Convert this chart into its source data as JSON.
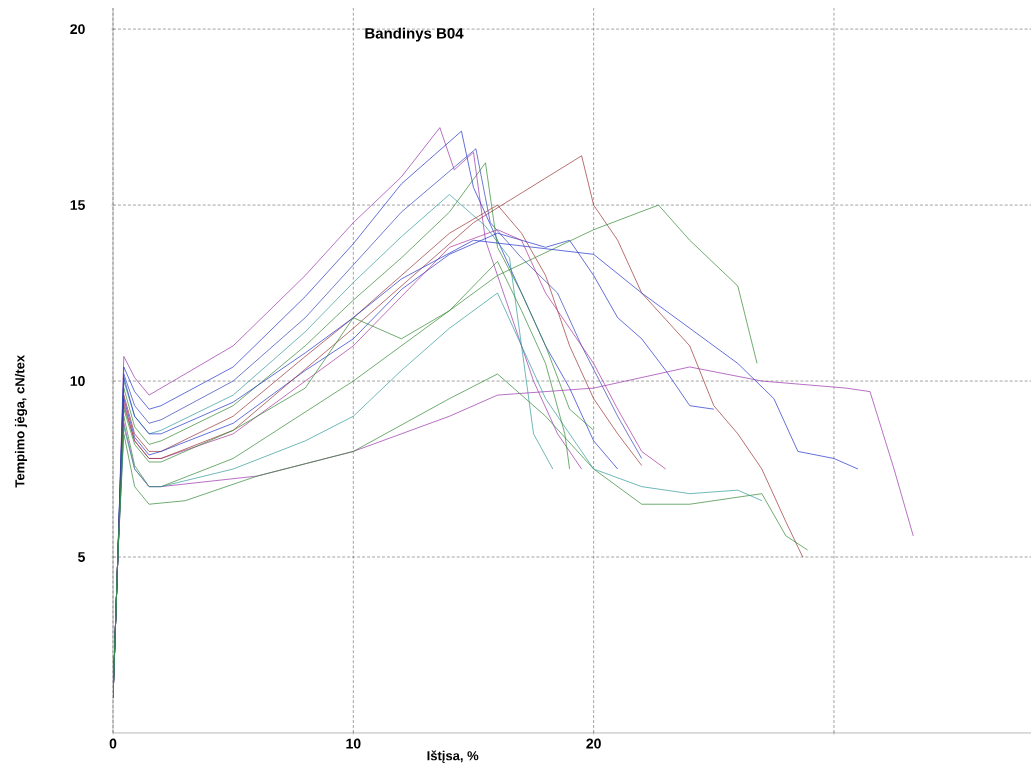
{
  "chart_data": {
    "type": "line",
    "title": "Bandinys B04",
    "xlabel": "Ištįsa, %",
    "ylabel": "Tempimo jėga, cN/tex",
    "xlim": [
      0,
      38.2
    ],
    "ylim": [
      0,
      20.6
    ],
    "xticks": [
      0,
      10,
      20,
      {
        "value": 30,
        "label": null
      }
    ],
    "yticks": [
      5,
      10,
      15,
      20
    ],
    "grid": true,
    "line_style": "solid",
    "marker": "none",
    "series": [
      {
        "color": "#9933aa",
        "x": [
          0,
          0.2,
          0.45,
          0.9,
          1.5,
          2,
          5,
          8,
          10,
          12,
          13.6,
          14.2,
          15,
          15.5,
          16.5,
          17.5,
          18.5,
          19.5
        ],
        "values": [
          1,
          5,
          10.7,
          10.1,
          9.6,
          9.8,
          11,
          13,
          14.5,
          15.8,
          17.2,
          16,
          16.5,
          14,
          12,
          10,
          8.5,
          7.5
        ]
      },
      {
        "color": "#2233cc",
        "x": [
          0,
          0.2,
          0.45,
          0.9,
          1.5,
          2,
          5,
          8,
          10,
          12,
          14.5,
          15,
          16,
          17,
          18,
          19,
          20,
          21
        ],
        "values": [
          1,
          5,
          10.4,
          9.7,
          9.2,
          9.3,
          10.4,
          12.4,
          13.9,
          15.6,
          17.1,
          15.5,
          14,
          12.5,
          11,
          9.8,
          8.3,
          7.5
        ]
      },
      {
        "color": "#3344bb",
        "x": [
          0,
          0.2,
          0.45,
          0.9,
          1.5,
          2,
          5,
          8,
          10,
          12,
          15.1,
          15.7,
          17,
          18.5,
          19.5,
          21,
          22
        ],
        "values": [
          1,
          5,
          10.2,
          9.3,
          8.8,
          8.9,
          10,
          11.8,
          13.3,
          14.8,
          16.6,
          14.5,
          13.5,
          12.5,
          11,
          9,
          7.8
        ]
      },
      {
        "color": "#339999",
        "x": [
          0,
          0.2,
          0.45,
          0.9,
          1.5,
          2,
          5,
          8,
          10,
          12,
          14,
          15.5,
          16.5,
          17,
          17.5,
          18.3
        ],
        "values": [
          1,
          5,
          10,
          9,
          8.5,
          8.6,
          9.6,
          11.4,
          12.8,
          14.1,
          15.3,
          14.4,
          13.5,
          11,
          8.5,
          7.5
        ]
      },
      {
        "color": "#338833",
        "x": [
          0,
          0.2,
          0.45,
          0.9,
          1.5,
          2,
          5,
          8,
          10,
          12,
          14,
          15.5,
          16,
          17,
          18,
          19,
          20
        ],
        "values": [
          1,
          5,
          9.8,
          8.7,
          8.2,
          8.3,
          9.3,
          11,
          12.3,
          13.5,
          14.8,
          16.2,
          13.8,
          12.5,
          11,
          9.2,
          8.6
        ]
      },
      {
        "color": "#993333",
        "x": [
          0,
          0.2,
          0.45,
          0.9,
          1.5,
          2,
          5,
          8,
          10,
          12,
          14,
          16,
          17,
          18,
          19,
          20,
          21,
          22
        ],
        "values": [
          1,
          5,
          9.6,
          8.5,
          8,
          8,
          9,
          10.7,
          11.8,
          13,
          14.2,
          15,
          14.2,
          13,
          11,
          9.5,
          8.5,
          7.6
        ]
      },
      {
        "color": "#2233cc",
        "x": [
          0,
          0.2,
          0.45,
          0.9,
          1.5,
          2,
          5,
          8,
          10,
          12,
          14,
          16,
          18,
          19,
          20,
          21,
          22,
          23,
          24,
          25
        ],
        "values": [
          1,
          5,
          9.5,
          8.4,
          7.9,
          8,
          8.8,
          10.3,
          11.2,
          12.6,
          13.6,
          14.2,
          13.8,
          14,
          13,
          11.8,
          11.2,
          10.3,
          9.3,
          9.2
        ]
      },
      {
        "color": "#aa3399",
        "x": [
          0,
          0.2,
          0.45,
          0.9,
          1.5,
          2,
          5,
          8,
          10,
          12,
          14,
          16,
          17,
          18,
          19,
          20,
          21,
          22,
          23
        ],
        "values": [
          1,
          5,
          9.4,
          8.3,
          7.8,
          7.8,
          8.5,
          10,
          11,
          12.4,
          13.8,
          14.3,
          14,
          12.5,
          11.5,
          10.5,
          9.2,
          8,
          7.5
        ]
      },
      {
        "color": "#993333",
        "x": [
          0,
          0.2,
          0.45,
          0.9,
          1.5,
          2,
          5,
          10,
          15,
          19.5,
          20,
          21,
          22,
          24,
          25,
          26,
          27,
          28,
          28.7
        ],
        "values": [
          1,
          5,
          9.3,
          8.3,
          7.8,
          7.8,
          8.6,
          11.5,
          14.5,
          16.4,
          15,
          14,
          12.5,
          11,
          9.3,
          8.5,
          7.5,
          6,
          5
        ]
      },
      {
        "color": "#338833",
        "x": [
          0,
          0.2,
          0.45,
          0.9,
          1.5,
          2,
          5,
          10,
          16,
          20,
          22.7,
          24,
          26,
          26.8
        ],
        "values": [
          1,
          5,
          9,
          7.6,
          7,
          7,
          7.8,
          10,
          13,
          14.3,
          15,
          14,
          12.7,
          10.5
        ]
      },
      {
        "color": "#9933aa",
        "x": [
          0,
          0.2,
          0.45,
          0.9,
          1.5,
          2,
          6,
          10,
          14,
          16,
          20,
          24,
          27,
          30.5,
          31.5,
          32.5,
          33.3
        ],
        "values": [
          1,
          5,
          8.8,
          7.5,
          7,
          7,
          7.3,
          8,
          9,
          9.6,
          9.8,
          10.4,
          10,
          9.8,
          9.7,
          7.5,
          5.6
        ]
      },
      {
        "color": "#2233cc",
        "x": [
          0,
          0.2,
          0.45,
          0.9,
          1.5,
          2,
          5,
          8,
          10,
          12,
          15,
          20,
          22,
          24,
          26,
          27.5,
          28.5,
          30,
          31
        ],
        "values": [
          1,
          5,
          10.1,
          9,
          8.5,
          8.5,
          9.4,
          10.8,
          11.8,
          12.9,
          14,
          13.6,
          12.5,
          11.5,
          10.5,
          9.5,
          8,
          7.8,
          7.5
        ]
      },
      {
        "color": "#338833",
        "x": [
          0,
          0.2,
          0.45,
          0.9,
          1.5,
          3,
          6,
          10,
          14,
          16,
          18,
          20,
          22,
          24,
          27,
          28,
          28.9
        ],
        "values": [
          1,
          5,
          8.5,
          7,
          6.5,
          6.6,
          7.3,
          8,
          9.5,
          10.2,
          9,
          7.5,
          6.5,
          6.5,
          6.8,
          5.6,
          5.2
        ]
      },
      {
        "color": "#339999",
        "x": [
          0,
          0.2,
          0.45,
          0.9,
          1.5,
          2,
          5,
          8,
          10,
          12,
          14,
          16,
          17,
          18,
          19,
          20,
          22,
          24,
          26,
          27
        ],
        "values": [
          1,
          5,
          8.7,
          7.5,
          7,
          7,
          7.5,
          8.3,
          9,
          10.3,
          11.5,
          12.5,
          11,
          9.5,
          8.5,
          7.5,
          7,
          6.8,
          6.9,
          6.6
        ]
      },
      {
        "color": "#338833",
        "x": [
          0,
          0.2,
          0.45,
          0.9,
          1.5,
          2,
          5,
          8,
          10,
          12,
          14,
          16,
          17,
          18,
          18.8,
          19
        ],
        "values": [
          1,
          5,
          9.2,
          8.2,
          7.7,
          7.7,
          8.6,
          9.8,
          11.8,
          11.2,
          12,
          13.4,
          12,
          10.5,
          8.5,
          7.5
        ]
      }
    ]
  }
}
